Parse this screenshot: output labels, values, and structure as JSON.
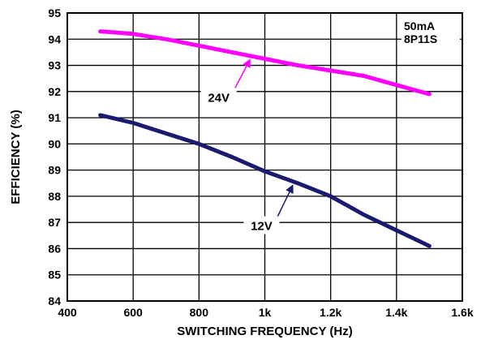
{
  "chart_data": {
    "type": "line",
    "title": "",
    "xlabel": "SWITCHING FREQUENCY (Hz)",
    "ylabel": "EFFICIENCY (%)",
    "xlim": [
      400,
      1600
    ],
    "ylim": [
      84,
      95
    ],
    "grid": true,
    "x_ticks": [
      {
        "value": 400,
        "label": "400"
      },
      {
        "value": 600,
        "label": "600"
      },
      {
        "value": 800,
        "label": "800"
      },
      {
        "value": 1000,
        "label": "1k"
      },
      {
        "value": 1200,
        "label": "1.2k"
      },
      {
        "value": 1400,
        "label": "1.4k"
      },
      {
        "value": 1600,
        "label": "1.6k"
      }
    ],
    "y_ticks": [
      {
        "value": 84,
        "label": "84"
      },
      {
        "value": 85,
        "label": "85"
      },
      {
        "value": 86,
        "label": "86"
      },
      {
        "value": 87,
        "label": "87"
      },
      {
        "value": 88,
        "label": "88"
      },
      {
        "value": 89,
        "label": "89"
      },
      {
        "value": 90,
        "label": "90"
      },
      {
        "value": 91,
        "label": "91"
      },
      {
        "value": 92,
        "label": "92"
      },
      {
        "value": 93,
        "label": "93"
      },
      {
        "value": 94,
        "label": "94"
      },
      {
        "value": 95,
        "label": "95"
      }
    ],
    "annotations": [
      "50mA",
      "8P11S"
    ],
    "series": [
      {
        "name": "24V",
        "color": "#ff00ff",
        "x": [
          500,
          600,
          700,
          800,
          900,
          1000,
          1100,
          1200,
          1300,
          1400,
          1500
        ],
        "y": [
          94.3,
          94.2,
          94.0,
          93.75,
          93.5,
          93.25,
          93.0,
          92.8,
          92.6,
          92.25,
          91.9
        ]
      },
      {
        "name": "12V",
        "color": "#1a1a6e",
        "x": [
          500,
          600,
          700,
          800,
          900,
          1000,
          1100,
          1200,
          1300,
          1400,
          1500
        ],
        "y": [
          91.1,
          90.8,
          90.4,
          90.0,
          89.5,
          88.95,
          88.5,
          88.0,
          87.3,
          86.7,
          86.1
        ]
      }
    ],
    "callouts": [
      {
        "label": "24V",
        "series": "24V",
        "target_x": 960,
        "target_y": 93.35,
        "label_x": 860,
        "label_y": 91.7
      },
      {
        "label": "12V",
        "series": "12V",
        "target_x": 1090,
        "target_y": 88.55,
        "label_x": 990,
        "label_y": 86.8
      }
    ]
  }
}
